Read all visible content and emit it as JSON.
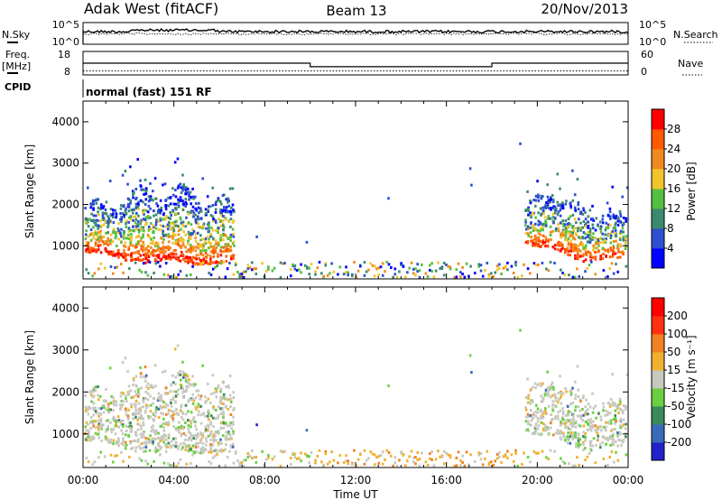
{
  "header": {
    "station": "Adak West (fitACF)",
    "beam": "Beam 13",
    "date": "20/Nov/2013"
  },
  "status": {
    "nsky_label": "N.Sky",
    "nsky_ticks": [
      "10^5",
      "10^0"
    ],
    "nsearch_label": "N.Search",
    "nsearch_ticks": [
      "10^5",
      "10^0"
    ],
    "freq_label_line1": "Freq.",
    "freq_label_line2": "[MHz]",
    "freq_ticks": [
      "18",
      "8"
    ],
    "nave_label": "Nave",
    "nave_ticks": [
      "60",
      "0"
    ],
    "cpid_label": "CPID",
    "cpid_text": "normal (fast) 151 RF",
    "freq_trace": {
      "t": [
        0,
        10,
        10,
        18,
        18,
        24
      ],
      "v": [
        13,
        13,
        11.5,
        11.5,
        13,
        13
      ]
    },
    "nave_trace": {
      "t": [
        0,
        24
      ],
      "v": [
        10,
        10
      ]
    }
  },
  "chart_data": [
    {
      "type": "heatmap",
      "name": "power",
      "xlabel": "",
      "ylabel": "Slant Range [km]",
      "xlim": [
        0,
        24
      ],
      "ylim": [
        200,
        4500
      ],
      "yticks": [
        "1000",
        "2000",
        "3000",
        "4000"
      ],
      "colorbar_label": "Power [dB]",
      "colorbar_ticks": [
        "4",
        "8",
        "12",
        "16",
        "20",
        "24",
        "28"
      ],
      "colorbar_colors": [
        "#0000ff",
        "#2d4fd0",
        "#3b8a6e",
        "#55c040",
        "#f2c42b",
        "#f08a1e",
        "#ff5a00",
        "#ff0000"
      ]
    },
    {
      "type": "heatmap",
      "name": "velocity",
      "xlabel": "Time UT",
      "ylabel": "Slant Range [km]",
      "xlim": [
        0,
        24
      ],
      "ylim": [
        200,
        4500
      ],
      "xticks": [
        "00:00",
        "04:00",
        "08:00",
        "12:00",
        "16:00",
        "20:00",
        "00:00"
      ],
      "yticks": [
        "1000",
        "2000",
        "3000",
        "4000"
      ],
      "colorbar_label": "Velocity [m s⁻¹]",
      "colorbar_ticks": [
        "200",
        "100",
        "50",
        "15",
        "-15",
        "-50",
        "-100",
        "-200"
      ],
      "colorbar_colors": [
        "#2222cc",
        "#3a6ab8",
        "#3a8a5a",
        "#6ad040",
        "#c8c8c0",
        "#f0b030",
        "#f08020",
        "#ff3010",
        "#ff0000"
      ]
    }
  ]
}
